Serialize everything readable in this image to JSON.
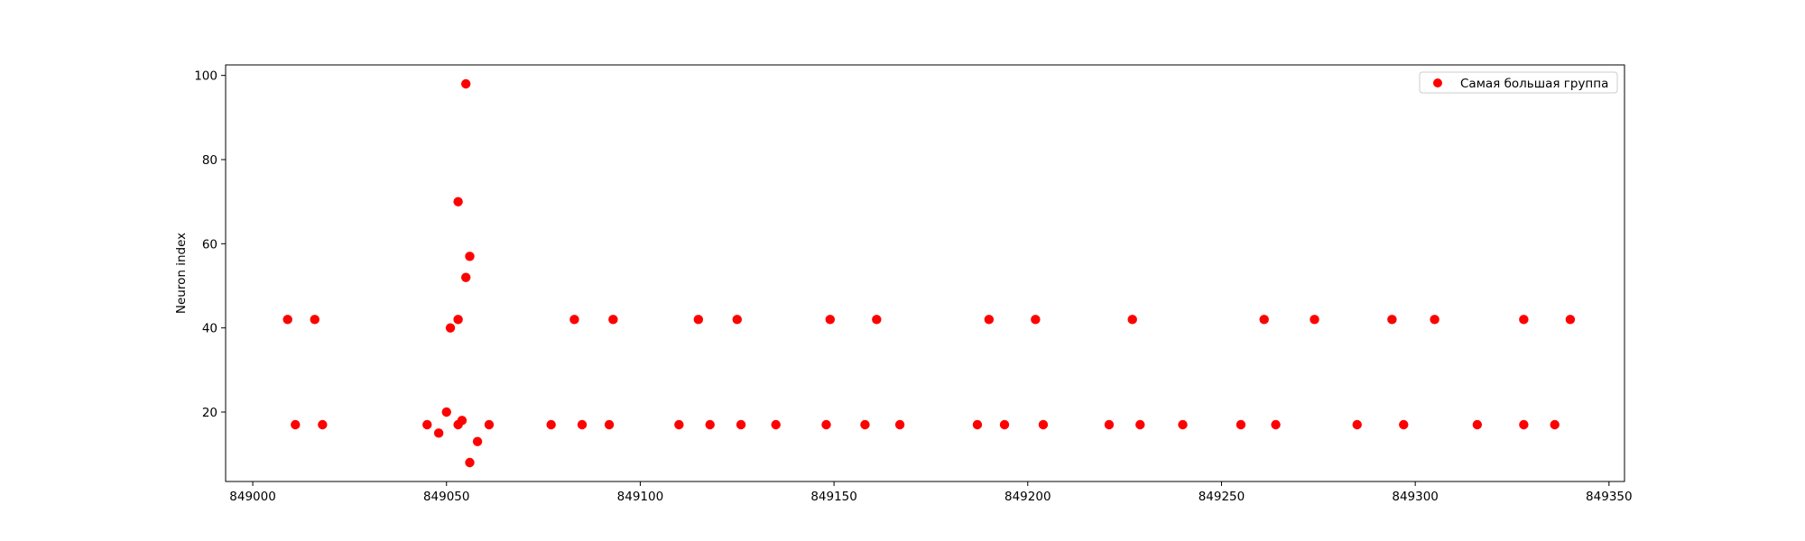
{
  "chart_data": {
    "type": "scatter",
    "title": "",
    "xlabel": "",
    "ylabel": "Neuron index",
    "xlim": [
      848993,
      849354
    ],
    "ylim": [
      3.5,
      102.5
    ],
    "xticks": [
      849000,
      849050,
      849100,
      849150,
      849200,
      849250,
      849300,
      849350
    ],
    "xtick_labels": [
      "849000",
      "849050",
      "849100",
      "849150",
      "849200",
      "849250",
      "849300",
      "849350"
    ],
    "yticks": [
      20,
      40,
      60,
      80,
      100
    ],
    "ytick_labels": [
      "20",
      "40",
      "60",
      "80",
      "100"
    ],
    "grid": false,
    "legend_position": "top-right",
    "series": [
      {
        "name": "Самая большая группа",
        "color": "#ff0000",
        "marker": "circle",
        "points": [
          [
            849009,
            42
          ],
          [
            849011,
            17
          ],
          [
            849016,
            42
          ],
          [
            849018,
            17
          ],
          [
            849045,
            17
          ],
          [
            849048,
            15
          ],
          [
            849050,
            20
          ],
          [
            849051,
            40
          ],
          [
            849053,
            17
          ],
          [
            849053,
            42
          ],
          [
            849053,
            70
          ],
          [
            849054,
            18
          ],
          [
            849055,
            98
          ],
          [
            849055,
            52
          ],
          [
            849056,
            57
          ],
          [
            849056,
            8
          ],
          [
            849058,
            13
          ],
          [
            849061,
            17
          ],
          [
            849077,
            17
          ],
          [
            849083,
            42
          ],
          [
            849085,
            17
          ],
          [
            849092,
            17
          ],
          [
            849093,
            42
          ],
          [
            849110,
            17
          ],
          [
            849115,
            42
          ],
          [
            849118,
            17
          ],
          [
            849125,
            42
          ],
          [
            849126,
            17
          ],
          [
            849135,
            17
          ],
          [
            849148,
            17
          ],
          [
            849149,
            42
          ],
          [
            849158,
            17
          ],
          [
            849161,
            42
          ],
          [
            849167,
            17
          ],
          [
            849187,
            17
          ],
          [
            849190,
            42
          ],
          [
            849194,
            17
          ],
          [
            849202,
            42
          ],
          [
            849204,
            17
          ],
          [
            849221,
            17
          ],
          [
            849227,
            42
          ],
          [
            849229,
            17
          ],
          [
            849240,
            17
          ],
          [
            849255,
            17
          ],
          [
            849261,
            42
          ],
          [
            849264,
            17
          ],
          [
            849274,
            42
          ],
          [
            849285,
            17
          ],
          [
            849294,
            42
          ],
          [
            849297,
            17
          ],
          [
            849305,
            42
          ],
          [
            849316,
            17
          ],
          [
            849328,
            17
          ],
          [
            849328,
            42
          ],
          [
            849336,
            17
          ],
          [
            849340,
            42
          ]
        ]
      }
    ]
  }
}
